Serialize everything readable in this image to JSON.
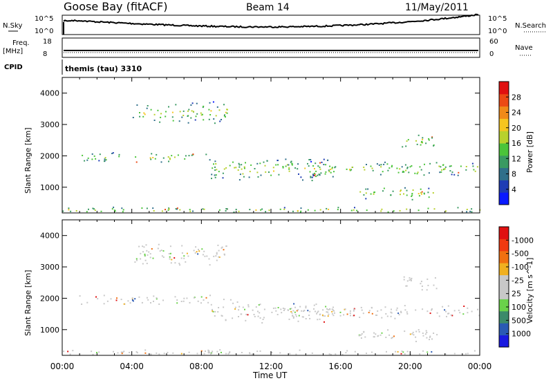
{
  "header": {
    "station": "Goose Bay (fitACF)",
    "beam": "Beam 14",
    "date": "11/May/2011"
  },
  "top_panels": {
    "nsky_label": "N.Sky",
    "nsky_ticks": [
      "10^5",
      "10^0"
    ],
    "nsearch_label": "N.Search",
    "nsearch_ticks": [
      "10^5",
      "10^0"
    ],
    "freq_label": "Freq.",
    "freq_unit": "[MHz]",
    "freq_ticks": [
      "18",
      "8"
    ],
    "nave_label": "Nave",
    "nave_ticks": [
      "60",
      "0"
    ],
    "cpid_label": "CPID",
    "cpid_value": "themis (tau) 3310"
  },
  "chart_data": [
    {
      "type": "heatmap",
      "panel": "power",
      "xlabel": "",
      "ylabel": "Slant Range [km]",
      "xlim": [
        0,
        24
      ],
      "ylim": [
        180,
        4500
      ],
      "yticks": [
        1000,
        2000,
        3000,
        4000
      ],
      "colorbar_label": "Power [dB]",
      "colorbar_ticks": [
        "4",
        "8",
        "12",
        "16",
        "20",
        "24",
        "28"
      ],
      "colorbar_colors": [
        "#0a1aff",
        "#1e3cb4",
        "#2f6f8a",
        "#3a9a62",
        "#4bc43a",
        "#b8d12c",
        "#f5c520",
        "#f08a18",
        "#ec4a14",
        "#e01010"
      ],
      "echo_bands": [
        {
          "x_start": 0.9,
          "x_end": 8.5,
          "range_start": 1800,
          "range_end": 2150
        },
        {
          "x_start": 8.5,
          "x_end": 15.5,
          "range_start": 1200,
          "range_end": 2000
        },
        {
          "x_start": 13.0,
          "x_end": 24.0,
          "range_start": 1350,
          "range_end": 1850
        },
        {
          "x_start": 4.0,
          "x_end": 9.5,
          "range_start": 3000,
          "range_end": 3800
        },
        {
          "x_start": 19.5,
          "x_end": 21.5,
          "range_start": 2200,
          "range_end": 2800
        },
        {
          "x_start": 17.0,
          "x_end": 21.5,
          "range_start": 600,
          "range_end": 1100
        },
        {
          "x_start": 0.0,
          "x_end": 24.0,
          "range_start": 180,
          "range_end": 400
        }
      ]
    },
    {
      "type": "heatmap",
      "panel": "velocity",
      "xlabel": "Time UT",
      "ylabel": "Slant Range [km]",
      "xlim": [
        0,
        24
      ],
      "ylim": [
        180,
        4500
      ],
      "yticks": [
        1000,
        2000,
        3000,
        4000
      ],
      "xticks": [
        "00:00",
        "04:00",
        "08:00",
        "12:00",
        "16:00",
        "20:00",
        "00:00"
      ],
      "colorbar_label": "Velocity [m s^-1]",
      "colorbar_ticks": [
        "1000",
        "500",
        "100",
        "25",
        "-25",
        "-100",
        "-500",
        "-1000"
      ],
      "colorbar_colors": [
        "#1a1ae0",
        "#2a5ab4",
        "#3c8a6a",
        "#6ad24a",
        "#c8c8c8",
        "#c8c8c8",
        "#f0b020",
        "#f07010",
        "#f03a10",
        "#e01010"
      ]
    }
  ]
}
